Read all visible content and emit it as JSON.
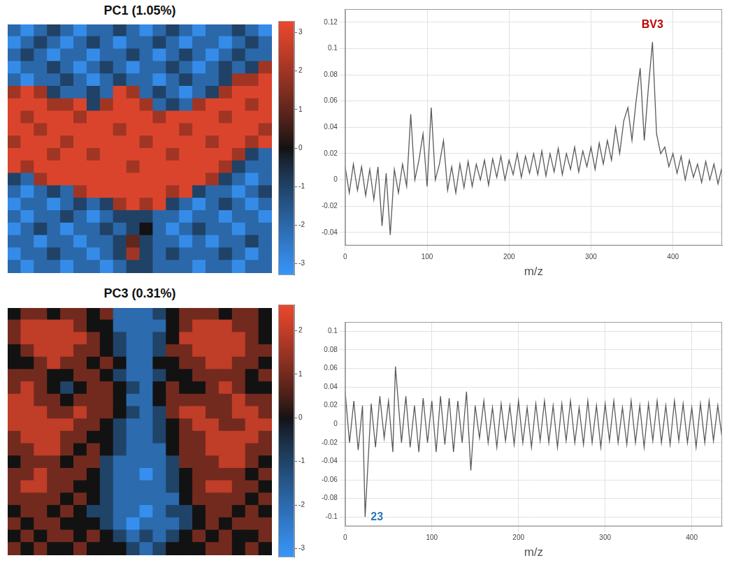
{
  "chart_data": [
    {
      "type": "heatmap",
      "title": "PC1 (1.05%)",
      "tick_labels": false,
      "colorbar": {
        "range": [
          -3.3,
          3.3
        ],
        "ticks": [
          -3,
          -2,
          -1,
          0,
          1,
          2,
          3
        ]
      },
      "cells": [
        [
          -2,
          -3,
          -2,
          -1,
          -2,
          -3,
          -2,
          -2,
          -1,
          -2,
          -3,
          -2,
          -1,
          -2,
          -3,
          -2,
          -2,
          -1,
          -2,
          -3
        ],
        [
          -3,
          -2,
          -1,
          -2,
          -3,
          -2,
          -1,
          -2,
          -3,
          -2,
          -2,
          -1,
          -2,
          -3,
          -2,
          -2,
          -3,
          -2,
          -1,
          -2
        ],
        [
          -2,
          -1,
          -2,
          -3,
          -2,
          -2,
          -3,
          -2,
          -2,
          -1,
          -2,
          -3,
          -2,
          -1,
          -2,
          -3,
          -2,
          -1,
          -2,
          -2
        ],
        [
          -3,
          -2,
          -2,
          -1,
          -2,
          -3,
          -2,
          -1,
          -2,
          -3,
          -2,
          -2,
          -1,
          -2,
          -3,
          -2,
          -1,
          -2,
          -1,
          2
        ],
        [
          -2,
          -3,
          -2,
          -2,
          -1,
          -2,
          -3,
          -2,
          -1,
          -2,
          -2,
          -3,
          -2,
          -1,
          -2,
          -2,
          -1,
          2,
          2,
          3
        ],
        [
          2,
          3,
          2,
          -1,
          -2,
          -2,
          -1,
          -2,
          3,
          2,
          -2,
          -1,
          -2,
          -3,
          -2,
          -1,
          2,
          3,
          3,
          3
        ],
        [
          3,
          3,
          3,
          2,
          2,
          3,
          -1,
          2,
          3,
          3,
          2,
          -2,
          -1,
          -2,
          2,
          3,
          3,
          3,
          2,
          3
        ],
        [
          3,
          2,
          3,
          3,
          3,
          2,
          3,
          3,
          3,
          3,
          3,
          2,
          3,
          3,
          3,
          3,
          2,
          3,
          3,
          3
        ],
        [
          3,
          3,
          2,
          3,
          3,
          3,
          3,
          3,
          2,
          3,
          3,
          3,
          3,
          2,
          3,
          3,
          3,
          3,
          3,
          2
        ],
        [
          2,
          3,
          3,
          3,
          2,
          3,
          3,
          3,
          3,
          3,
          2,
          3,
          3,
          3,
          3,
          2,
          3,
          3,
          2,
          3
        ],
        [
          3,
          3,
          3,
          2,
          3,
          3,
          2,
          3,
          3,
          3,
          3,
          3,
          2,
          3,
          3,
          3,
          3,
          2,
          -1,
          -2
        ],
        [
          3,
          2,
          3,
          3,
          3,
          3,
          3,
          3,
          3,
          2,
          3,
          3,
          3,
          3,
          3,
          3,
          2,
          -1,
          -2,
          -2
        ],
        [
          -1,
          -2,
          2,
          3,
          3,
          3,
          3,
          3,
          3,
          3,
          3,
          3,
          3,
          3,
          3,
          2,
          -1,
          -2,
          -3,
          -2
        ],
        [
          -2,
          -3,
          -2,
          -1,
          -2,
          2,
          3,
          3,
          3,
          3,
          3,
          3,
          2,
          3,
          -1,
          -2,
          -2,
          -3,
          -2,
          -1
        ],
        [
          -3,
          -2,
          -2,
          -3,
          -2,
          -1,
          -2,
          -1,
          2,
          3,
          2,
          3,
          -1,
          -2,
          -3,
          -2,
          -1,
          -2,
          -3,
          -2
        ],
        [
          -2,
          -3,
          -2,
          -2,
          -1,
          -2,
          -3,
          -2,
          -1,
          -1,
          -1,
          -2,
          -2,
          -3,
          -2,
          -2,
          -3,
          -2,
          -2,
          -3
        ],
        [
          -3,
          -2,
          -1,
          -2,
          -3,
          -2,
          -2,
          -1,
          -2,
          -1,
          0,
          -2,
          -3,
          -2,
          -1,
          -2,
          -2,
          -3,
          -2,
          -2
        ],
        [
          -2,
          -2,
          -3,
          -2,
          -2,
          -3,
          -2,
          -2,
          -1,
          1,
          -1,
          -2,
          -2,
          -3,
          -2,
          -3,
          -2,
          -2,
          -1,
          -2
        ],
        [
          -3,
          -2,
          -2,
          -1,
          -2,
          -2,
          -3,
          -2,
          -1,
          2,
          -1,
          -2,
          -1,
          -2,
          -2,
          -2,
          -1,
          -2,
          -3,
          -2
        ],
        [
          -2,
          -3,
          -2,
          -2,
          -3,
          -2,
          -2,
          -3,
          -2,
          -1,
          -1,
          -2,
          -2,
          -2,
          -3,
          -2,
          -2,
          -3,
          -2,
          -2
        ]
      ]
    },
    {
      "type": "line",
      "color": "#595959",
      "grid": true,
      "x_label": "m/z",
      "xlim": [
        0,
        460
      ],
      "xticks": [
        0,
        100,
        200,
        300,
        400
      ],
      "ylim": [
        -0.05,
        0.13
      ],
      "yticks": [
        -0.04,
        -0.02,
        0,
        0.02,
        0.04,
        0.06,
        0.08,
        0.1,
        0.12
      ],
      "x": [
        0,
        5,
        10,
        15,
        20,
        25,
        30,
        35,
        40,
        45,
        50,
        55,
        60,
        65,
        70,
        75,
        80,
        85,
        90,
        95,
        100,
        105,
        110,
        115,
        120,
        125,
        130,
        135,
        140,
        145,
        150,
        155,
        160,
        165,
        170,
        175,
        180,
        185,
        190,
        195,
        200,
        205,
        210,
        215,
        220,
        225,
        230,
        235,
        240,
        245,
        250,
        255,
        260,
        265,
        270,
        275,
        280,
        285,
        290,
        295,
        300,
        305,
        310,
        315,
        320,
        325,
        330,
        335,
        340,
        345,
        350,
        355,
        360,
        365,
        370,
        375,
        380,
        385,
        390,
        395,
        400,
        405,
        410,
        415,
        420,
        425,
        430,
        435,
        440,
        445,
        450,
        455,
        460
      ],
      "values": [
        0.01,
        -0.01,
        0.012,
        -0.008,
        0.01,
        -0.012,
        0.008,
        -0.015,
        0.01,
        -0.035,
        0.005,
        -0.042,
        0.008,
        -0.01,
        0.012,
        -0.005,
        0.05,
        0.0,
        0.015,
        0.035,
        -0.005,
        0.055,
        0.0,
        0.012,
        0.03,
        -0.008,
        0.01,
        -0.01,
        0.012,
        -0.006,
        0.014,
        -0.005,
        0.012,
        0.0,
        0.015,
        -0.004,
        0.016,
        0.002,
        0.018,
        0.0,
        0.015,
        0.004,
        0.02,
        0.002,
        0.018,
        0.005,
        0.02,
        0.004,
        0.022,
        0.003,
        0.02,
        0.006,
        0.024,
        0.004,
        0.02,
        0.008,
        0.025,
        0.006,
        0.022,
        0.01,
        0.025,
        0.008,
        0.028,
        0.012,
        0.03,
        0.015,
        0.04,
        0.02,
        0.045,
        0.055,
        0.03,
        0.06,
        0.085,
        0.03,
        0.07,
        0.105,
        0.035,
        0.02,
        0.025,
        0.01,
        0.02,
        0.005,
        0.018,
        0.0,
        0.015,
        0.002,
        0.012,
        -0.002,
        0.014,
        0.0,
        0.012,
        -0.003,
        0.01
      ],
      "annotations": [
        {
          "text": "BV3",
          "x": 375,
          "y": 0.118,
          "color": "#c00000"
        }
      ]
    },
    {
      "type": "heatmap",
      "title": "PC3 (0.31%)",
      "tick_labels": false,
      "colorbar": {
        "range": [
          -3.2,
          2.6
        ],
        "ticks": [
          -3,
          -2,
          -1,
          0,
          1,
          2
        ]
      },
      "cells": [
        [
          0,
          1,
          1,
          0,
          1,
          1,
          0,
          1,
          -2,
          -2,
          -2,
          -1,
          0,
          1,
          1,
          1,
          0,
          1,
          1,
          0
        ],
        [
          1,
          2,
          2,
          2,
          2,
          1,
          0,
          0,
          -2,
          -2,
          -2,
          -2,
          0,
          1,
          2,
          2,
          2,
          1,
          1,
          0
        ],
        [
          1,
          2,
          2,
          2,
          2,
          2,
          1,
          0,
          -1,
          -2,
          -2,
          -1,
          0,
          2,
          2,
          2,
          2,
          2,
          1,
          0
        ],
        [
          0,
          1,
          2,
          2,
          2,
          1,
          1,
          0,
          -1,
          -2,
          -2,
          -1,
          1,
          1,
          2,
          2,
          2,
          2,
          1,
          1
        ],
        [
          0,
          0,
          1,
          2,
          1,
          1,
          0,
          1,
          0,
          -2,
          -2,
          0,
          0,
          1,
          1,
          2,
          2,
          1,
          1,
          0
        ],
        [
          1,
          1,
          1,
          0,
          0,
          1,
          1,
          0,
          -1,
          -2,
          -2,
          -1,
          0,
          0,
          1,
          1,
          1,
          1,
          0,
          1
        ],
        [
          1,
          2,
          1,
          0,
          -1,
          0,
          1,
          1,
          0,
          -1,
          -2,
          0,
          1,
          0,
          0,
          1,
          2,
          1,
          0,
          0
        ],
        [
          2,
          2,
          1,
          1,
          0,
          1,
          1,
          1,
          0,
          -2,
          -2,
          0,
          1,
          1,
          1,
          1,
          1,
          2,
          1,
          1
        ],
        [
          2,
          2,
          2,
          1,
          1,
          2,
          1,
          1,
          0,
          -1,
          -2,
          -1,
          1,
          2,
          2,
          1,
          1,
          2,
          2,
          1
        ],
        [
          2,
          2,
          2,
          2,
          2,
          1,
          1,
          0,
          -1,
          -2,
          -2,
          -1,
          0,
          1,
          2,
          2,
          1,
          1,
          2,
          2
        ],
        [
          1,
          2,
          2,
          2,
          1,
          1,
          0,
          0,
          -1,
          -2,
          -2,
          -1,
          0,
          1,
          1,
          2,
          2,
          2,
          2,
          1
        ],
        [
          1,
          1,
          2,
          2,
          1,
          0,
          1,
          0,
          -1,
          -2,
          -2,
          -2,
          0,
          1,
          1,
          2,
          2,
          2,
          1,
          1
        ],
        [
          0,
          1,
          1,
          1,
          0,
          1,
          1,
          -1,
          -2,
          -2,
          -2,
          -2,
          -1,
          1,
          1,
          1,
          2,
          2,
          1,
          0
        ],
        [
          1,
          1,
          2,
          1,
          1,
          1,
          0,
          -1,
          -2,
          -2,
          -3,
          -2,
          -1,
          0,
          1,
          1,
          1,
          1,
          0,
          1
        ],
        [
          1,
          2,
          2,
          1,
          1,
          0,
          0,
          -1,
          -2,
          -2,
          -2,
          -2,
          -1,
          0,
          1,
          2,
          2,
          1,
          1,
          0
        ],
        [
          1,
          1,
          1,
          1,
          0,
          1,
          0,
          -1,
          -2,
          -2,
          -2,
          -2,
          -2,
          0,
          1,
          1,
          1,
          1,
          0,
          1
        ],
        [
          0,
          1,
          1,
          0,
          1,
          0,
          -1,
          -1,
          -2,
          -2,
          -3,
          -2,
          -1,
          -1,
          0,
          1,
          1,
          0,
          1,
          0
        ],
        [
          1,
          0,
          1,
          1,
          0,
          0,
          0,
          -1,
          -2,
          -3,
          -2,
          -2,
          -2,
          -1,
          0,
          1,
          0,
          1,
          1,
          1
        ],
        [
          0,
          1,
          0,
          1,
          1,
          0,
          1,
          0,
          -1,
          -2,
          -1,
          -2,
          -1,
          0,
          1,
          0,
          1,
          0,
          0,
          1
        ],
        [
          1,
          0,
          1,
          0,
          0,
          1,
          0,
          0,
          0,
          -1,
          -2,
          -1,
          0,
          0,
          0,
          1,
          1,
          0,
          1,
          0
        ]
      ]
    },
    {
      "type": "line",
      "color": "#595959",
      "grid": true,
      "x_label": "m/z",
      "xlim": [
        0,
        435
      ],
      "xticks": [
        0,
        100,
        200,
        300,
        400
      ],
      "ylim": [
        -0.11,
        0.11
      ],
      "yticks": [
        -0.1,
        -0.08,
        -0.06,
        -0.04,
        -0.02,
        0,
        0.02,
        0.04,
        0.06,
        0.08,
        0.1
      ],
      "x": [
        0,
        5,
        10,
        15,
        20,
        23,
        30,
        35,
        40,
        45,
        50,
        55,
        58,
        65,
        70,
        75,
        80,
        85,
        90,
        95,
        100,
        105,
        110,
        115,
        120,
        125,
        130,
        135,
        140,
        145,
        150,
        155,
        160,
        165,
        170,
        175,
        180,
        185,
        190,
        195,
        200,
        205,
        210,
        215,
        220,
        225,
        230,
        235,
        240,
        245,
        250,
        255,
        260,
        265,
        270,
        275,
        280,
        285,
        290,
        295,
        300,
        305,
        310,
        315,
        320,
        325,
        330,
        335,
        340,
        345,
        350,
        355,
        360,
        365,
        370,
        375,
        380,
        385,
        390,
        395,
        400,
        405,
        410,
        415,
        420,
        425,
        430,
        435
      ],
      "values": [
        0.035,
        -0.02,
        0.025,
        -0.028,
        0.02,
        -0.1,
        0.022,
        -0.025,
        0.03,
        -0.015,
        0.025,
        -0.03,
        0.062,
        -0.02,
        0.03,
        -0.025,
        0.02,
        -0.03,
        0.028,
        -0.02,
        0.025,
        -0.03,
        0.03,
        -0.022,
        0.028,
        -0.03,
        0.025,
        -0.02,
        0.035,
        -0.05,
        0.02,
        -0.015,
        0.025,
        -0.02,
        0.018,
        -0.025,
        0.022,
        -0.018,
        0.02,
        -0.022,
        0.025,
        -0.02,
        0.018,
        -0.025,
        0.022,
        -0.018,
        0.025,
        -0.02,
        0.02,
        -0.025,
        0.022,
        -0.018,
        0.025,
        -0.02,
        0.018,
        -0.022,
        0.025,
        -0.02,
        0.02,
        -0.025,
        0.022,
        -0.018,
        0.025,
        -0.02,
        0.018,
        -0.022,
        0.025,
        -0.02,
        0.02,
        -0.025,
        0.022,
        -0.018,
        0.025,
        -0.02,
        0.02,
        -0.022,
        0.025,
        -0.018,
        0.022,
        -0.02,
        0.018,
        -0.025,
        0.022,
        -0.02,
        0.025,
        -0.018,
        0.02,
        -0.015
      ],
      "annotations": [
        {
          "text": "23",
          "x": 23,
          "y": -0.1,
          "color": "#2e75b6"
        }
      ]
    }
  ]
}
